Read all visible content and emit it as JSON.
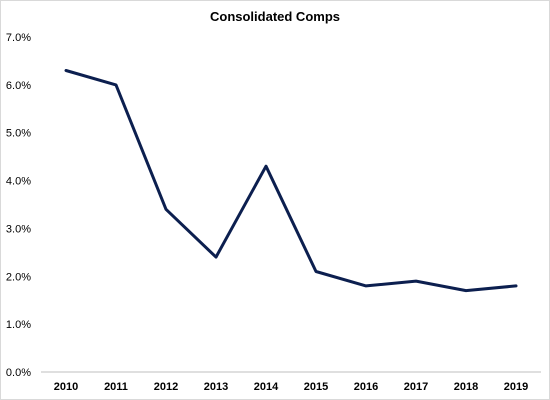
{
  "chart_data": {
    "type": "line",
    "title": "Consolidated Comps",
    "xlabel": "",
    "ylabel": "",
    "categories": [
      "2010",
      "2011",
      "2012",
      "2013",
      "2014",
      "2015",
      "2016",
      "2017",
      "2018",
      "2019"
    ],
    "series": [
      {
        "values": [
          6.3,
          6.0,
          3.4,
          2.4,
          4.3,
          2.1,
          1.8,
          1.9,
          1.7,
          1.8
        ]
      }
    ],
    "ylim": [
      0,
      7
    ],
    "y_ticks": [
      0,
      1,
      2,
      3,
      4,
      5,
      6,
      7
    ],
    "y_tick_labels": [
      "0.0%",
      "1.0%",
      "2.0%",
      "3.0%",
      "4.0%",
      "5.0%",
      "6.0%",
      "7.0%"
    ],
    "grid": false,
    "legend": "none",
    "line_color": "#0c1f4f",
    "axis_color": "#bfbfbf"
  }
}
